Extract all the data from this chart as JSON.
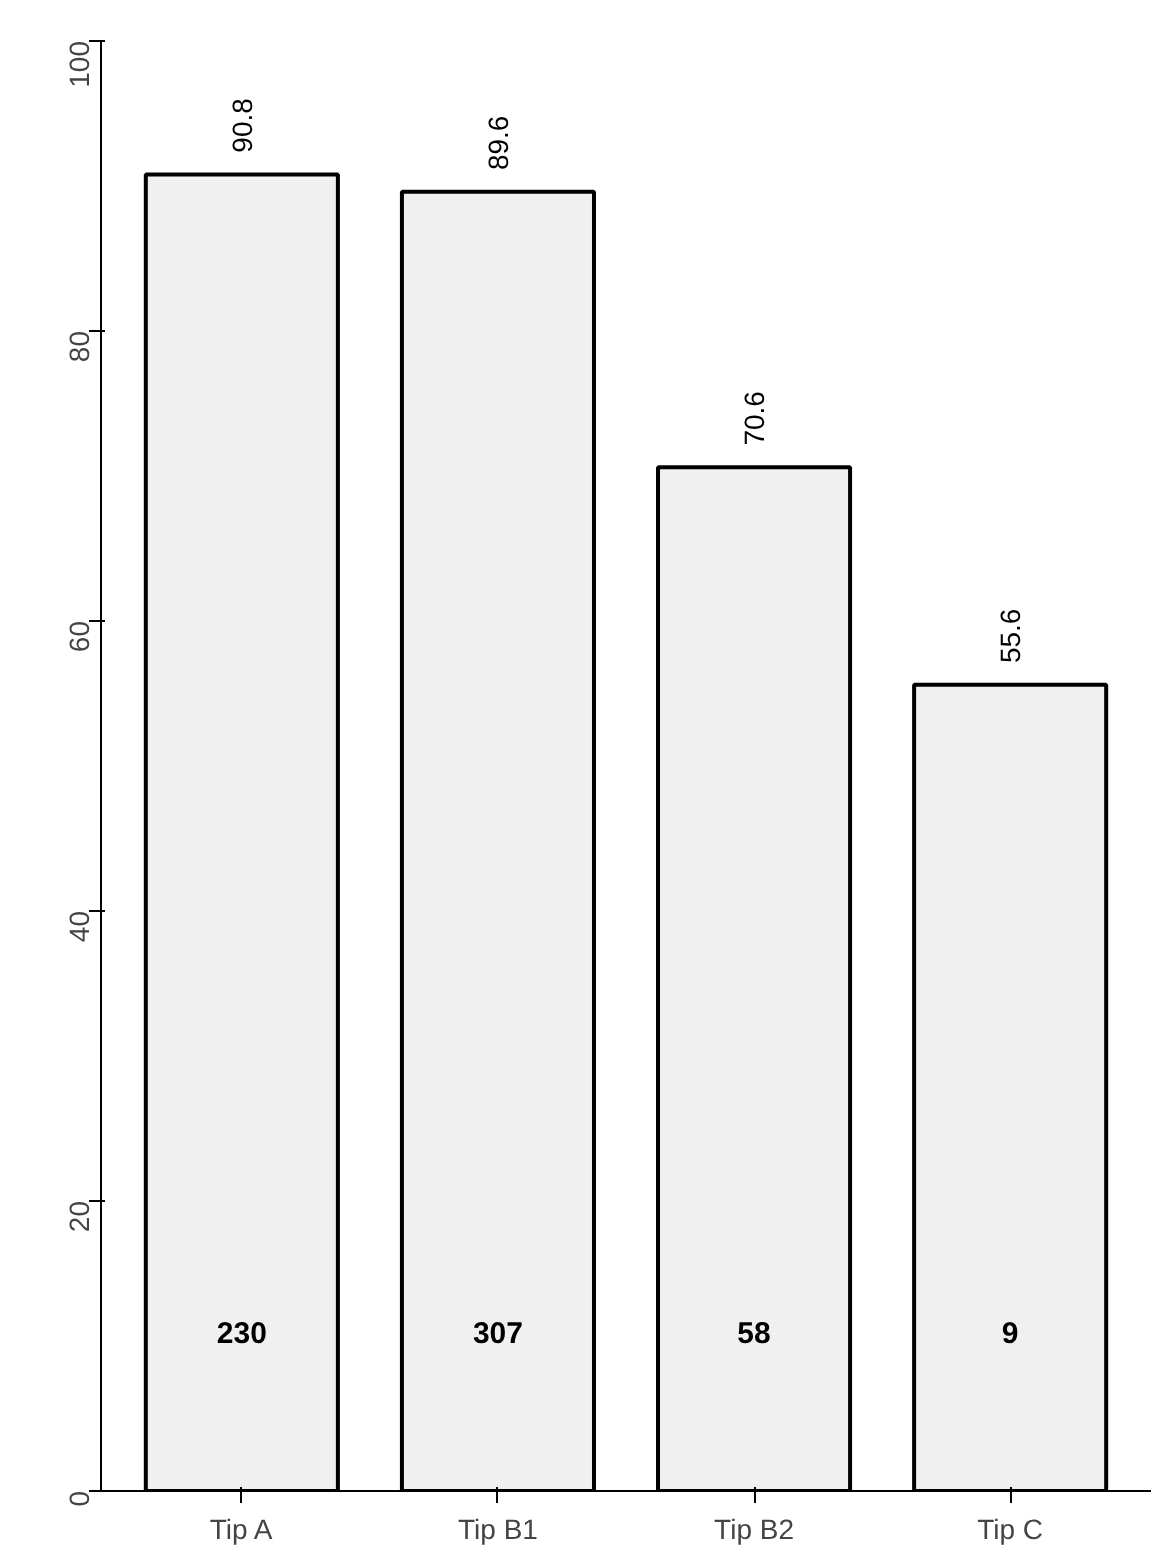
{
  "chart_data": {
    "type": "bar",
    "categories": [
      "Tip A",
      "Tip B1",
      "Tip B2",
      "Tip C"
    ],
    "values": [
      90.8,
      89.6,
      70.6,
      55.6
    ],
    "color": "#f0f0f0",
    "ylim": [
      0,
      100
    ],
    "yticks": [
      0,
      20,
      40,
      60,
      80,
      100
    ],
    "data_labels": true,
    "annotations": [
      "230",
      "307",
      "58",
      "9"
    ]
  }
}
